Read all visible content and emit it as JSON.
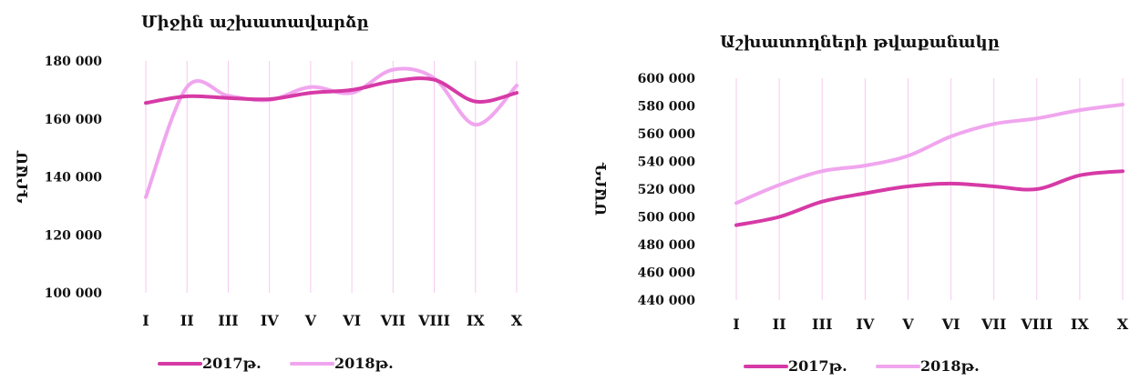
{
  "chart_data": [
    {
      "type": "line",
      "title": "Միջին աշխատավարձը",
      "ylabel": "ԴՐԱՄ",
      "xlabel": "",
      "categories": [
        "I",
        "II",
        "III",
        "IV",
        "V",
        "VI",
        "VII",
        "VIII",
        "IX",
        "X"
      ],
      "yticks": [
        "100 000",
        "120 000",
        "140 000",
        "160 000",
        "180 000"
      ],
      "ylim": [
        100000,
        180000
      ],
      "series": [
        {
          "name": "2017թ.",
          "values": [
            165500,
            167800,
            167200,
            166800,
            169000,
            170000,
            173000,
            173500,
            166000,
            169000
          ]
        },
        {
          "name": "2018թ.",
          "values": [
            133000,
            171000,
            168000,
            166500,
            171000,
            169000,
            177000,
            174000,
            158000,
            171500
          ]
        }
      ],
      "colors": {
        "2017թ.": "#d63aa6",
        "2018թ.": "#f0a6ee"
      },
      "grid": "vertical",
      "legend": "bottom-left"
    },
    {
      "type": "line",
      "title": "Աշխատողների թվաքանակը",
      "ylabel": "ՄԱՐԴ",
      "xlabel": "",
      "categories": [
        "I",
        "II",
        "III",
        "IV",
        "V",
        "VI",
        "VII",
        "VIII",
        "IX",
        "X"
      ],
      "yticks": [
        "440 000",
        "460 000",
        "480 000",
        "500 000",
        "520 000",
        "540 000",
        "560 000",
        "580 000",
        "600 000"
      ],
      "ylim": [
        440000,
        600000
      ],
      "series": [
        {
          "name": "2017թ.",
          "values": [
            494000,
            500000,
            511000,
            517000,
            522000,
            524000,
            522000,
            520000,
            530000,
            533000
          ]
        },
        {
          "name": "2018թ.",
          "values": [
            510000,
            523000,
            533000,
            537000,
            544000,
            558000,
            567000,
            571000,
            577000,
            581000
          ]
        }
      ],
      "colors": {
        "2017թ.": "#d63aa6",
        "2018թ.": "#f0a6ee"
      },
      "grid": "vertical",
      "legend": "bottom-left"
    }
  ]
}
